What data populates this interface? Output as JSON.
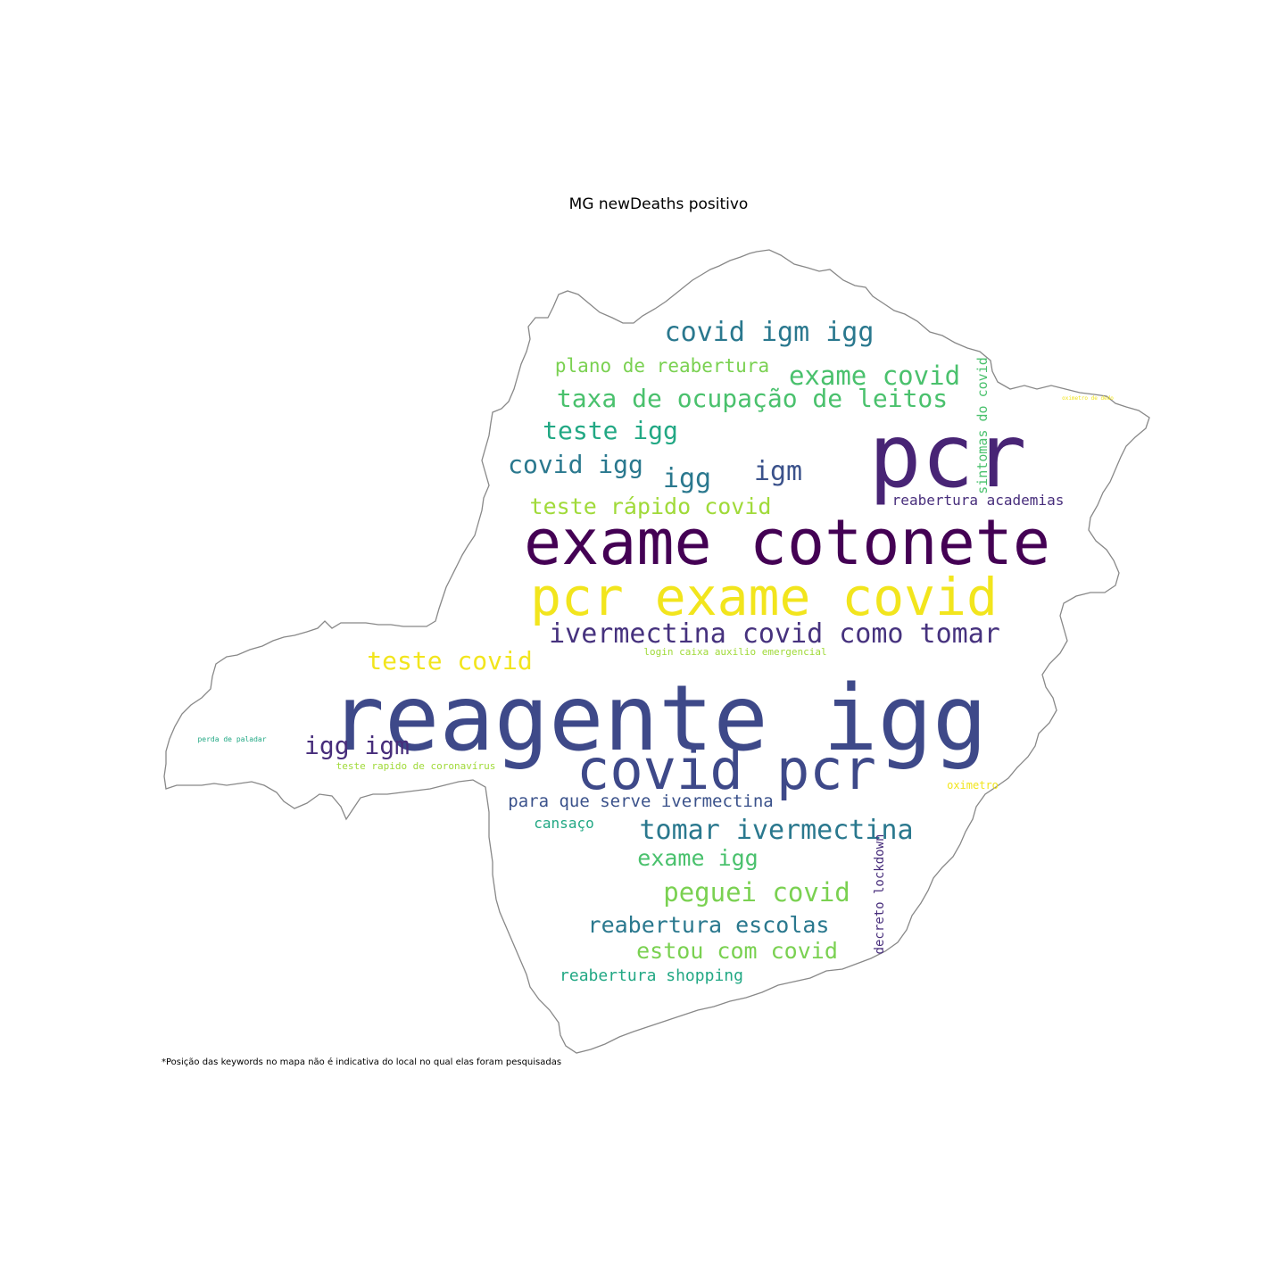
{
  "chart_data": {
    "type": "wordcloud",
    "title": "MG newDeaths positivo",
    "footnote": "*Posição das keywords no mapa não é indicativa do local no qual elas foram pesquisadas",
    "words": [
      {
        "text": "reagente igg",
        "color": "#3e4989"
      },
      {
        "text": "exame cotonete",
        "color": "#440154"
      },
      {
        "text": "pcr exame covid",
        "color": "#f2e51d"
      },
      {
        "text": "pcr",
        "color": "#482475"
      },
      {
        "text": "covid pcr",
        "color": "#3e4989"
      },
      {
        "text": "ivermectina covid como tomar",
        "color": "#46327e"
      },
      {
        "text": "covid igm igg",
        "color": "#2a788e"
      },
      {
        "text": "exame covid",
        "color": "#4ac16d"
      },
      {
        "text": "taxa de ocupação de leitos",
        "color": "#4ac16d"
      },
      {
        "text": "plano de reabertura",
        "color": "#7ad151"
      },
      {
        "text": "teste igg",
        "color": "#22a884"
      },
      {
        "text": "covid igg",
        "color": "#2a788e"
      },
      {
        "text": "igg",
        "color": "#2a788e"
      },
      {
        "text": "igm",
        "color": "#3b528b"
      },
      {
        "text": "teste rápido covid",
        "color": "#a0da39"
      },
      {
        "text": "sintomas do covid",
        "color": "#4ac16d"
      },
      {
        "text": "reabertura academias",
        "color": "#472d7b"
      },
      {
        "text": "teste covid",
        "color": "#f2e51d"
      },
      {
        "text": "login caixa auxilio emergencial",
        "color": "#a0da39"
      },
      {
        "text": "igg igm",
        "color": "#472d7b"
      },
      {
        "text": "teste rapido de coronavírus",
        "color": "#a0da39"
      },
      {
        "text": "perda de paladar",
        "color": "#22a884"
      },
      {
        "text": "para que serve ivermectina",
        "color": "#3b528b"
      },
      {
        "text": "cansaço",
        "color": "#22a884"
      },
      {
        "text": "tomar ivermectina",
        "color": "#2a788e"
      },
      {
        "text": "exame igg",
        "color": "#4ac16d"
      },
      {
        "text": "decreto lockdown",
        "color": "#472d7b"
      },
      {
        "text": "peguei covid",
        "color": "#7ad151"
      },
      {
        "text": "reabertura escolas",
        "color": "#2a788e"
      },
      {
        "text": "estou com covid",
        "color": "#7ad151"
      },
      {
        "text": "reabertura shopping",
        "color": "#22a884"
      },
      {
        "text": "oximetro",
        "color": "#f2e51d"
      },
      {
        "text": "oximetro de dedo",
        "color": "#f2e51d"
      }
    ]
  }
}
